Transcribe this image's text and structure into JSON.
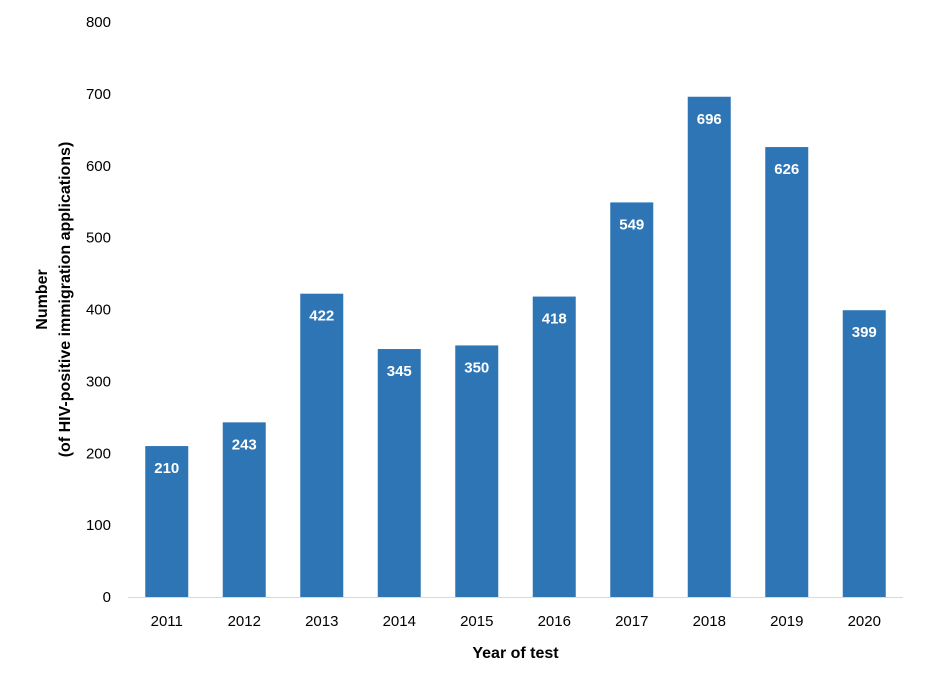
{
  "chart_data": {
    "type": "bar",
    "categories": [
      "2011",
      "2012",
      "2013",
      "2014",
      "2015",
      "2016",
      "2017",
      "2018",
      "2019",
      "2020"
    ],
    "values": [
      210,
      243,
      422,
      345,
      350,
      418,
      549,
      696,
      626,
      399
    ],
    "data_labels": [
      "210",
      "243",
      "422",
      "345",
      "350",
      "418",
      "549",
      "696",
      "626",
      "399"
    ],
    "xlabel": "Year of test",
    "ylabel_lines": [
      "Number",
      "(of HIV-positive immigration applications)"
    ],
    "ylim": [
      0,
      800
    ],
    "yticks": [
      "0",
      "100",
      "200",
      "300",
      "400",
      "500",
      "600",
      "700",
      "800"
    ],
    "grid": false,
    "bar_color": "#2E75B6"
  }
}
